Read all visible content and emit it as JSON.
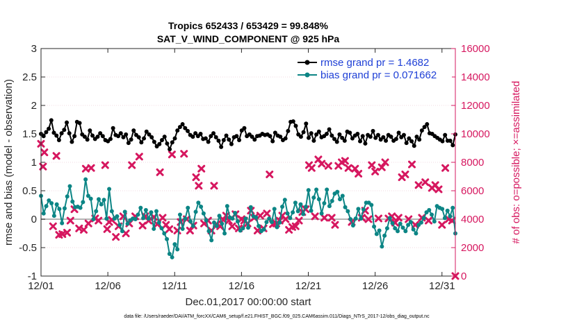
{
  "chart_data": {
    "type": "line",
    "title": "Tropics 652433 / 653429 = 99.848%",
    "subtitle": "SAT_V_WIND_COMPONENT @ 925 hPa",
    "xlabel": "Dec.01,2017 00:00:00 start",
    "ylabel": "rmse and bias (model - observation)",
    "ylabel_right": "# of obs: o=possible; ×=assimilated",
    "ylim": [
      -1,
      3
    ],
    "ylim_right": [
      0,
      16000
    ],
    "xlim": [
      0,
      31
    ],
    "x_ticks": [
      0,
      5,
      10,
      15,
      20,
      25,
      30
    ],
    "x_tick_labels": [
      "12/01",
      "12/06",
      "12/11",
      "12/16",
      "12/21",
      "12/26",
      "12/31"
    ],
    "y_tick_labels": [
      "-1",
      "-0.5",
      "0",
      "0.5",
      "1",
      "1.5",
      "2",
      "2.5",
      "3"
    ],
    "y_tick_labels_right": [
      "0",
      "2000",
      "4000",
      "6000",
      "8000",
      "10000",
      "12000",
      "14000",
      "16000"
    ],
    "legend_position": "top-right",
    "footer": "data file: /Users/raeder/DAI/ATM_forcXX/CAM6_setup/f.e21.FHIST_BGC.f09_025.CAM6assim.011/Diags_NTrS_2017-12/obs_diag_output.nc",
    "colors": {
      "rmse": "#000000",
      "bias": "#0c8585",
      "obs": "#d6175f",
      "zero": "#b4b4b4",
      "grid": "#f0d8e0"
    },
    "series": [
      {
        "name": "rmse",
        "legend": "rmse grand pr = 1.4682",
        "values": [
          1.5,
          1.46,
          1.53,
          1.59,
          1.74,
          1.52,
          1.47,
          1.39,
          1.51,
          1.57,
          1.7,
          1.51,
          1.36,
          1.46,
          1.71,
          1.69,
          1.49,
          1.45,
          1.4,
          1.56,
          1.47,
          1.41,
          1.45,
          1.51,
          1.46,
          1.39,
          1.37,
          1.41,
          1.6,
          1.48,
          1.46,
          1.51,
          1.44,
          1.49,
          1.34,
          1.4,
          1.56,
          1.48,
          1.44,
          1.35,
          1.42,
          1.54,
          1.49,
          1.44,
          1.36,
          1.28,
          1.32,
          1.39,
          1.45,
          1.33,
          1.23,
          1.35,
          1.42,
          1.56,
          1.62,
          1.67,
          1.6,
          1.55,
          1.48,
          1.45,
          1.51,
          1.46,
          1.5,
          1.41,
          1.42,
          1.36,
          1.46,
          1.51,
          1.44,
          1.38,
          1.27,
          1.39,
          1.47,
          1.4,
          1.32,
          1.44,
          1.46,
          1.39,
          1.56,
          1.6,
          1.46,
          1.49,
          1.45,
          1.4,
          1.46,
          1.47,
          1.5,
          1.48,
          1.49,
          1.46,
          1.37,
          1.52,
          1.47,
          1.45,
          1.39,
          1.42,
          1.55,
          1.71,
          1.72,
          1.64,
          1.49,
          1.45,
          1.53,
          1.68,
          1.43,
          1.51,
          1.38,
          1.49,
          1.54,
          1.44,
          1.46,
          1.5,
          1.58,
          1.47,
          1.41,
          1.36,
          1.49,
          1.43,
          1.38,
          1.54,
          1.52,
          1.42,
          1.47,
          1.5,
          1.37,
          1.46,
          1.33,
          1.48,
          1.45,
          1.55,
          1.43,
          1.48,
          1.4,
          1.44,
          1.38,
          1.48,
          1.45,
          1.38,
          1.41,
          1.52,
          1.44,
          1.48,
          1.34,
          1.42,
          1.37,
          1.29,
          1.45,
          1.4,
          1.56,
          1.62,
          1.67,
          1.51,
          1.5,
          1.46,
          1.43,
          1.4,
          1.37,
          1.48,
          1.38,
          1.38,
          1.3,
          1.49
        ]
      },
      {
        "name": "bias",
        "legend": "bias grand pr = 0.071662",
        "values": [
          0.41,
          0.1,
          0.23,
          0.33,
          0.28,
          0.06,
          0.26,
          0.18,
          -0.07,
          0.19,
          0.4,
          0.58,
          0.31,
          0.21,
          0.22,
          0.2,
          0.3,
          0.7,
          0.41,
          0.36,
          0.0,
          0.14,
          0.35,
          0.26,
          0.34,
          0.01,
          0.53,
          0.14,
          0.01,
          0.05,
          -0.1,
          -0.21,
          0.13,
          -0.08,
          -0.02,
          0.01,
          0.0,
          0.08,
          0.2,
          0.02,
          0.16,
          0.01,
          0.12,
          -0.17,
          0.14,
          -0.06,
          -0.16,
          -0.25,
          -0.35,
          -0.61,
          -0.67,
          -0.44,
          -0.53,
          0.08,
          -0.17,
          0.01,
          0.2,
          -0.04,
          -0.12,
          0.13,
          0.29,
          0.22,
          0.1,
          -0.02,
          -0.21,
          -0.37,
          -0.06,
          -0.12,
          0.06,
          -0.08,
          -0.25,
          0.23,
          0.03,
          0.01,
          0.11,
          -0.04,
          -0.2,
          -0.16,
          0.01,
          -0.15,
          0.21,
          0.05,
          0.03,
          -0.12,
          -0.21,
          -0.18,
          -0.05,
          0.01,
          -0.05,
          0.18,
          -0.14,
          -0.06,
          0.22,
          0.34,
          0.1,
          0.02,
          0.12,
          0.29,
          0.14,
          0.26,
          0.09,
          0.22,
          0.51,
          0.15,
          0.38,
          0.52,
          0.35,
          0.1,
          0.28,
          0.52,
          0.23,
          0.32,
          0.45,
          0.48,
          0.35,
          0.41,
          0.21,
          0.14,
          0.0,
          -0.11,
          0.01,
          0.18,
          0.01,
          0.17,
          0.29,
          0.29,
          0.25,
          -0.13,
          -0.26,
          -0.2,
          -0.48,
          -0.29,
          -0.16,
          0.02,
          -0.07,
          -0.16,
          -0.21,
          -0.08,
          -0.15,
          -0.21,
          -0.1,
          -0.05,
          -0.18,
          -0.25,
          -0.1,
          -0.06,
          0.02,
          0.12,
          0.16,
          0.08,
          -0.04,
          0.23,
          0.2,
          0.18,
          0.02,
          0.15,
          0.05,
          0.2,
          -0.25
        ]
      },
      {
        "name": "obs assimilated",
        "x": [
          0.0,
          0.15,
          0.25,
          0.9,
          1.15,
          1.35,
          1.6,
          1.95,
          2.2,
          2.5,
          2.85,
          3.2,
          3.35,
          3.55,
          3.75,
          4.05,
          4.3,
          4.8,
          4.95,
          5.1,
          5.3,
          5.6,
          5.8,
          6.15,
          6.35,
          6.6,
          6.8,
          7.05,
          7.35,
          7.6,
          7.8,
          8.05,
          8.45,
          8.7,
          8.9,
          9.1,
          9.35,
          9.6,
          9.8,
          10.2,
          10.45,
          10.7,
          10.9,
          11.15,
          11.4,
          11.6,
          11.8,
          12.0,
          12.2,
          12.5,
          12.75,
          12.95,
          13.15,
          13.4,
          13.65,
          13.85,
          14.05,
          14.3,
          14.55,
          14.8,
          15.0,
          15.2,
          15.45,
          15.7,
          15.95,
          16.2,
          16.4,
          16.65,
          16.9,
          17.1,
          17.35,
          17.6,
          17.85,
          18.05,
          18.3,
          18.55,
          18.8,
          19.05,
          19.3,
          19.55,
          19.8,
          20.05,
          20.25,
          20.5,
          20.75,
          21.0,
          21.2,
          21.5,
          21.75,
          22.0,
          22.25,
          22.5,
          22.75,
          23.0,
          23.25,
          23.5,
          23.75,
          24.0,
          24.25,
          24.5,
          24.75,
          25.0,
          25.25,
          25.5,
          25.75,
          26.0,
          26.25,
          26.5,
          26.75,
          27.0,
          27.25,
          27.5,
          27.75,
          28.0,
          28.25,
          28.5,
          28.75,
          29.0,
          29.25,
          29.5,
          29.75,
          30.0,
          30.25,
          30.5,
          30.75,
          31.0
        ],
        "y": [
          9300,
          7700,
          8700,
          3500,
          8450,
          2900,
          2950,
          3050,
          3900,
          4700,
          3350,
          3250,
          7550,
          3700,
          7600,
          4050,
          3900,
          7800,
          3300,
          3800,
          3950,
          2750,
          3500,
          4200,
          3000,
          3700,
          7800,
          4200,
          8400,
          3550,
          4200,
          3900,
          4150,
          3650,
          7300,
          4100,
          3600,
          3300,
          8550,
          3200,
          3800,
          8600,
          4000,
          3200,
          3550,
          6950,
          6350,
          7550,
          3700,
          3900,
          3200,
          6350,
          3650,
          3500,
          3950,
          4250,
          3900,
          3500,
          4350,
          3350,
          4000,
          3900,
          3700,
          4600,
          4100,
          3200,
          4250,
          3350,
          4400,
          7150,
          3650,
          3700,
          3900,
          4250,
          4000,
          3250,
          3450,
          3500,
          3900,
          4500,
          4700,
          7800,
          7600,
          4200,
          8200,
          7900,
          4100,
          7750,
          4100,
          3600,
          7750,
          8000,
          8100,
          7600,
          3800,
          7550,
          7200,
          4100,
          4600,
          4000,
          7800,
          7350,
          4050,
          7650,
          8000,
          4050,
          4200,
          3750,
          4100,
          6950,
          7150,
          4000,
          7850,
          3600,
          6400,
          4100,
          6600,
          3900,
          6200,
          6400,
          6100,
          3600,
          7600,
          4000,
          3900,
          0
        ]
      }
    ]
  }
}
